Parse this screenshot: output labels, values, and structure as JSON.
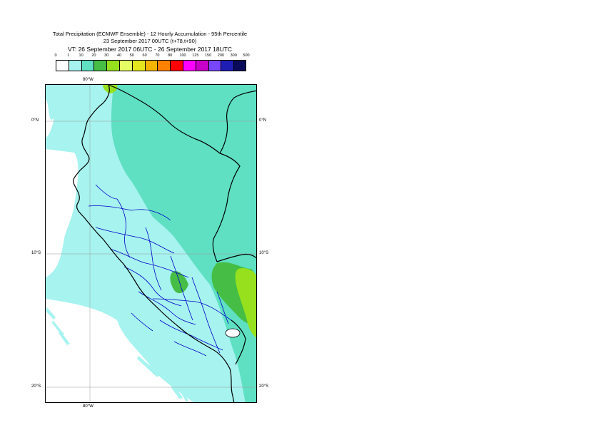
{
  "title": {
    "line1": "Total Precipitation (ECMWF Ensemble) - 12 Hourly Accumulation - 95th Percentile",
    "line2": "23 September 2017 00UTC (t+78,t+90)",
    "line3": "VT: 26 September 2017 06UTC - 26 September 2017 18UTC"
  },
  "legend": {
    "labels": [
      "0",
      "1",
      "10",
      "20",
      "30",
      "40",
      "50",
      "60",
      "70",
      "80",
      "100",
      "125",
      "150",
      "200",
      "300",
      "500"
    ],
    "colors": [
      "#ffffff",
      "#a6f3ef",
      "#5fe0c3",
      "#46be46",
      "#96e01e",
      "#e6ff64",
      "#e6e61e",
      "#f5b400",
      "#ff8200",
      "#ff0000",
      "#ff00ff",
      "#c800c8",
      "#7846ff",
      "#1e1eb4",
      "#0a0a5a"
    ]
  },
  "map": {
    "lon_labels": {
      "top": "80°W",
      "bottom": "80°W"
    },
    "lat_labels": [
      {
        "left": "0°N",
        "right": "0°N"
      },
      {
        "left": "10°S",
        "right": "10°S"
      },
      {
        "left": "20°S",
        "right": "20°S"
      }
    ],
    "colors": {
      "ocean_precip": "#a6f3ef",
      "land_precip": "#5fe0c3",
      "heavy_precip": "#96e01e",
      "medium_precip": "#46be46",
      "coastline": "#000000",
      "admin_borders": "#0000c8",
      "gridlines": "#9a9a9a"
    }
  }
}
